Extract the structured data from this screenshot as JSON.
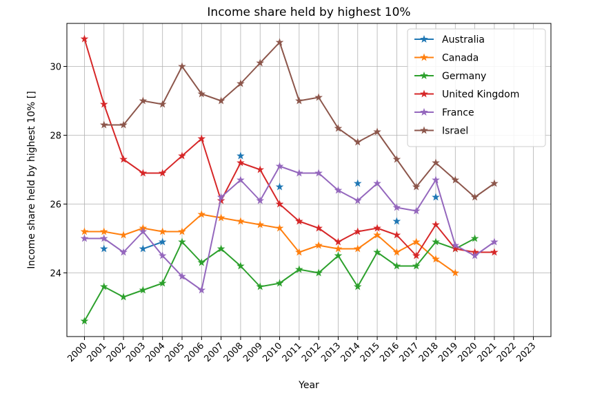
{
  "chart_data": {
    "type": "line",
    "title": "Income share held by highest 10%",
    "xlabel": "Year",
    "ylabel": "Income share held by highest 10% []",
    "xlim": [
      1999.1,
      2023.9
    ],
    "ylim": [
      22.15,
      31.25
    ],
    "x_ticks": [
      2000,
      2001,
      2002,
      2003,
      2004,
      2005,
      2006,
      2007,
      2008,
      2009,
      2010,
      2011,
      2012,
      2013,
      2014,
      2015,
      2016,
      2017,
      2018,
      2019,
      2020,
      2021,
      2022,
      2023
    ],
    "x_tick_labels": [
      "2000",
      "2001",
      "2002",
      "2003",
      "2004",
      "2005",
      "2006",
      "2007",
      "2008",
      "2009",
      "2010",
      "2011",
      "2012",
      "2013",
      "2014",
      "2015",
      "2016",
      "2017",
      "2018",
      "2019",
      "2020",
      "2021",
      "2022",
      "2023"
    ],
    "y_ticks": [
      24,
      26,
      28,
      30
    ],
    "y_tick_labels": [
      "24",
      "26",
      "28",
      "30"
    ],
    "grid": true,
    "legend_position": "top-right",
    "marker": "star",
    "series": [
      {
        "name": "Australia",
        "color": "#1f77b4",
        "x": [
          2001,
          2003,
          2004,
          2008,
          2010,
          2014,
          2016,
          2018
        ],
        "y": [
          24.7,
          24.7,
          24.9,
          27.4,
          26.5,
          26.6,
          25.5,
          26.2
        ],
        "connect": [
          [
            2003,
            2004
          ]
        ]
      },
      {
        "name": "Canada",
        "color": "#ff7f0e",
        "x": [
          2000,
          2001,
          2002,
          2003,
          2004,
          2005,
          2006,
          2007,
          2008,
          2009,
          2010,
          2011,
          2012,
          2013,
          2014,
          2015,
          2016,
          2017,
          2018,
          2019
        ],
        "y": [
          25.2,
          25.2,
          25.1,
          25.3,
          25.2,
          25.2,
          25.7,
          25.6,
          25.5,
          25.4,
          25.3,
          24.6,
          24.8,
          24.7,
          24.7,
          25.1,
          24.6,
          24.9,
          24.4,
          24.0
        ]
      },
      {
        "name": "Germany",
        "color": "#2ca02c",
        "x": [
          2000,
          2001,
          2002,
          2003,
          2004,
          2005,
          2006,
          2007,
          2008,
          2009,
          2010,
          2011,
          2012,
          2013,
          2014,
          2015,
          2016,
          2017,
          2018,
          2019,
          2020
        ],
        "y": [
          22.6,
          23.6,
          23.3,
          23.5,
          23.7,
          24.9,
          24.3,
          24.7,
          24.2,
          23.6,
          23.7,
          24.1,
          24.0,
          24.5,
          23.6,
          24.6,
          24.2,
          24.2,
          24.9,
          24.7,
          25.0
        ]
      },
      {
        "name": "United Kingdom",
        "color": "#d62728",
        "x": [
          2000,
          2001,
          2002,
          2003,
          2004,
          2005,
          2006,
          2007,
          2008,
          2009,
          2010,
          2011,
          2012,
          2013,
          2014,
          2015,
          2016,
          2017,
          2018,
          2019,
          2020,
          2021
        ],
        "y": [
          30.8,
          28.9,
          27.3,
          26.9,
          26.9,
          27.4,
          27.9,
          26.1,
          27.2,
          27.0,
          26.0,
          25.5,
          25.3,
          24.9,
          25.2,
          25.3,
          25.1,
          24.5,
          25.4,
          24.7,
          24.6,
          24.6
        ]
      },
      {
        "name": "France",
        "color": "#9467bd",
        "x": [
          2000,
          2001,
          2002,
          2003,
          2004,
          2005,
          2006,
          2007,
          2008,
          2009,
          2010,
          2011,
          2012,
          2013,
          2014,
          2015,
          2016,
          2017,
          2018,
          2019,
          2020,
          2021
        ],
        "y": [
          25.0,
          25.0,
          24.6,
          25.2,
          24.5,
          23.9,
          23.5,
          26.2,
          26.7,
          26.1,
          27.1,
          26.9,
          26.9,
          26.4,
          26.1,
          26.6,
          25.9,
          25.8,
          26.7,
          24.8,
          24.5,
          24.9
        ]
      },
      {
        "name": "Israel",
        "color": "#8c564b",
        "x": [
          2001,
          2002,
          2003,
          2004,
          2005,
          2006,
          2007,
          2008,
          2009,
          2010,
          2011,
          2012,
          2013,
          2014,
          2015,
          2016,
          2017,
          2018,
          2019,
          2020,
          2021
        ],
        "y": [
          28.3,
          28.3,
          29.0,
          28.9,
          30.0,
          29.2,
          29.0,
          29.5,
          30.1,
          30.7,
          29.0,
          29.1,
          28.2,
          27.8,
          28.1,
          27.3,
          26.5,
          27.2,
          26.7,
          26.2,
          26.6
        ]
      }
    ]
  }
}
